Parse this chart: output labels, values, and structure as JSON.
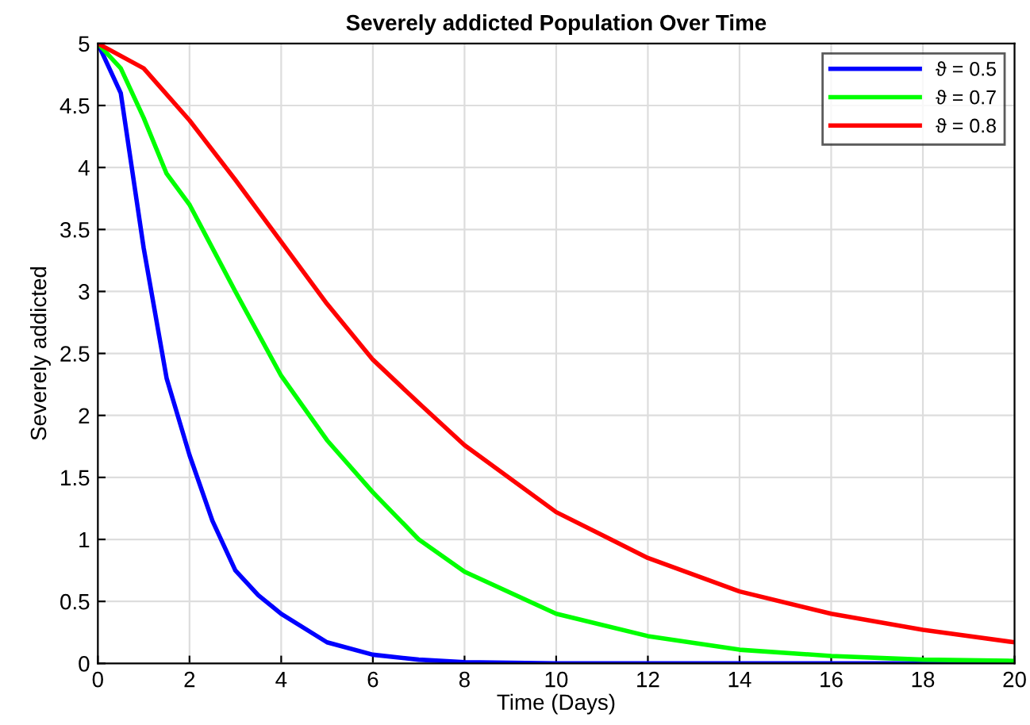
{
  "chart_data": {
    "type": "line",
    "title": "Severely addicted Population Over Time",
    "xlabel": "Time (Days)",
    "ylabel": "Severely addicted",
    "xlim": [
      0,
      20
    ],
    "ylim": [
      0,
      5
    ],
    "xticks": [
      0,
      2,
      4,
      6,
      8,
      10,
      12,
      14,
      16,
      18,
      20
    ],
    "yticks": [
      0,
      0.5,
      1,
      1.5,
      2,
      2.5,
      3,
      3.5,
      4,
      4.5,
      5
    ],
    "grid": true,
    "legend": "top right",
    "line_style": "solid",
    "marker": "none",
    "series": [
      {
        "name": "ϑ = 0.5",
        "color": "#0000ff",
        "x": [
          0,
          0.5,
          1,
          1.5,
          2,
          2.5,
          3,
          3.5,
          4,
          5,
          6,
          7,
          8,
          10,
          12,
          14,
          16,
          18,
          20
        ],
        "values": [
          5,
          4.6,
          3.35,
          2.3,
          1.68,
          1.15,
          0.75,
          0.55,
          0.4,
          0.17,
          0.07,
          0.03,
          0.01,
          0,
          0,
          0,
          0,
          0,
          0
        ]
      },
      {
        "name": "ϑ = 0.7",
        "color": "#00ff00",
        "x": [
          0,
          0.5,
          1,
          1.5,
          2,
          3,
          4,
          5,
          6,
          7,
          8,
          10,
          12,
          14,
          16,
          18,
          20
        ],
        "values": [
          5,
          4.8,
          4.4,
          3.95,
          3.7,
          3.0,
          2.32,
          1.8,
          1.38,
          1.0,
          0.74,
          0.4,
          0.22,
          0.11,
          0.06,
          0.03,
          0.02
        ]
      },
      {
        "name": "ϑ = 0.8",
        "color": "#ff0000",
        "x": [
          0,
          1,
          2,
          3,
          4,
          5,
          6,
          7,
          8,
          10,
          12,
          14,
          16,
          18,
          20
        ],
        "values": [
          5,
          4.8,
          4.38,
          3.9,
          3.4,
          2.9,
          2.45,
          2.1,
          1.76,
          1.22,
          0.85,
          0.58,
          0.4,
          0.27,
          0.17
        ]
      }
    ]
  }
}
